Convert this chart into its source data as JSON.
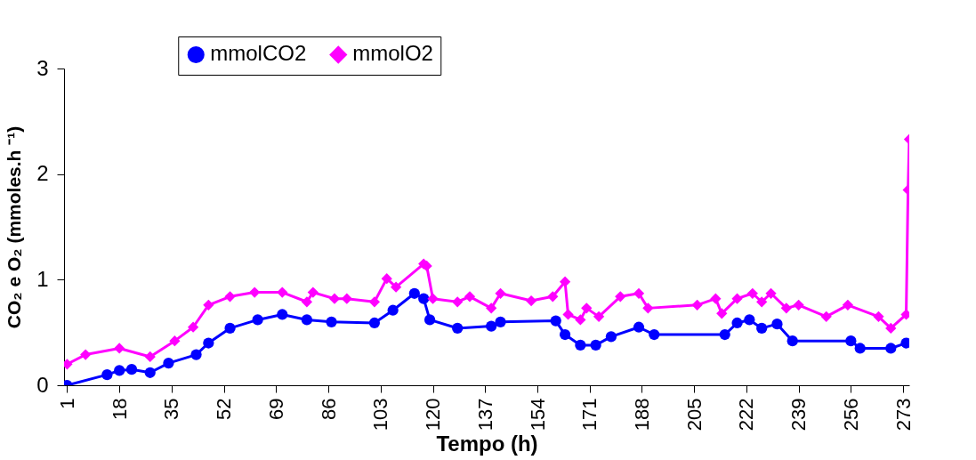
{
  "chart_data": {
    "type": "line",
    "xlabel": "Tempo (h)",
    "ylabel": "CO₂ e O₂ (mmoles.h ⁻¹)",
    "xlim": [
      0,
      275
    ],
    "xticks": [
      1,
      18,
      35,
      52,
      69,
      86,
      103,
      120,
      137,
      154,
      171,
      188,
      205,
      222,
      239,
      256,
      273
    ],
    "ylim": [
      0,
      3
    ],
    "yticks": [
      0,
      1,
      2,
      3
    ],
    "grid": false,
    "legend": "top",
    "line_style": "solid",
    "series": [
      {
        "name": "mmolCO2",
        "color": "#0000ff",
        "marker": "circle",
        "x": [
          1,
          14,
          18,
          22,
          28,
          34,
          43,
          47,
          54,
          63,
          71,
          79,
          87,
          101,
          107,
          114,
          117,
          119,
          128,
          139,
          142,
          160,
          163,
          168,
          173,
          178,
          187,
          192,
          215,
          219,
          223,
          227,
          232,
          237,
          256,
          259,
          269,
          274
        ],
        "values": [
          0,
          0.1,
          0.14,
          0.15,
          0.12,
          0.21,
          0.29,
          0.4,
          0.54,
          0.62,
          0.67,
          0.62,
          0.6,
          0.59,
          0.71,
          0.87,
          0.82,
          0.62,
          0.54,
          0.56,
          0.6,
          0.61,
          0.48,
          0.38,
          0.38,
          0.46,
          0.55,
          0.48,
          0.48,
          0.59,
          0.62,
          0.54,
          0.58,
          0.42,
          0.42,
          0.35,
          0.35,
          0.4
        ]
      },
      {
        "name": "mmolO2",
        "color": "#ff00ff",
        "marker": "diamond",
        "x": [
          1,
          7,
          18,
          28,
          36,
          42,
          47,
          54,
          62,
          71,
          79,
          81,
          88,
          92,
          101,
          105,
          108,
          117,
          118,
          120,
          128,
          132,
          139,
          142,
          152,
          159,
          163,
          164,
          168,
          170,
          174,
          181,
          187,
          190,
          206,
          212,
          214,
          219,
          224,
          227,
          230,
          235,
          239,
          248,
          255,
          265,
          269,
          274,
          274.6,
          275
        ],
        "values": [
          0.2,
          0.29,
          0.35,
          0.27,
          0.42,
          0.55,
          0.76,
          0.84,
          0.88,
          0.88,
          0.79,
          0.88,
          0.82,
          0.82,
          0.79,
          1.01,
          0.93,
          1.15,
          1.13,
          0.82,
          0.79,
          0.84,
          0.73,
          0.87,
          0.8,
          0.84,
          0.98,
          0.67,
          0.62,
          0.73,
          0.65,
          0.84,
          0.87,
          0.73,
          0.76,
          0.82,
          0.68,
          0.82,
          0.87,
          0.79,
          0.87,
          0.73,
          0.76,
          0.65,
          0.76,
          0.65,
          0.54,
          0.67,
          1.85,
          2.33
        ]
      }
    ]
  }
}
